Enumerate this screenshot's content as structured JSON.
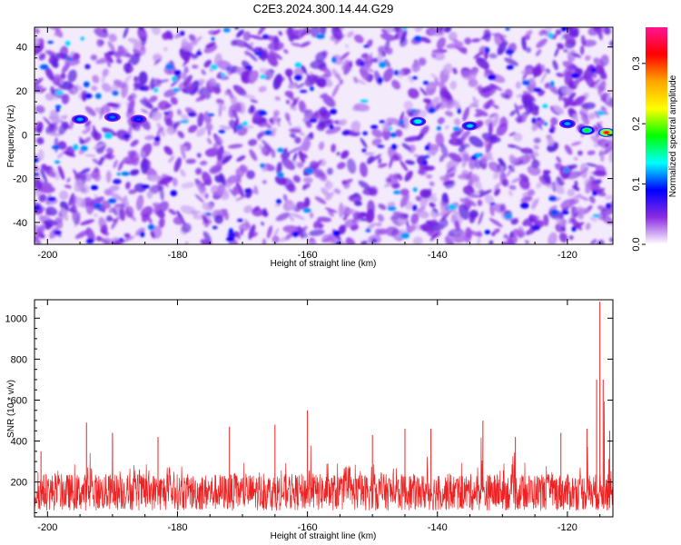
{
  "title": "C2E3.2024.300.14.44.G29",
  "chart_data": [
    {
      "type": "heatmap",
      "xlabel": "Height of straight line (km)",
      "ylabel": "Frequency (Hz)",
      "xlim": [
        -202,
        -113
      ],
      "ylim": [
        -50,
        49
      ],
      "x_ticks": [
        -200,
        -180,
        -160,
        -140,
        -120
      ],
      "y_ticks": [
        -40,
        -20,
        0,
        20,
        40
      ],
      "grid": false,
      "colorbar": {
        "label": "Normalized spectral amplitude",
        "range": [
          0,
          0.36
        ],
        "ticks": [
          0,
          0.1,
          0.2,
          0.3
        ],
        "tick_labels": [
          "0.0",
          "0.1",
          "0.2",
          "0.3"
        ],
        "colormap": [
          "#ffffff",
          "#8a2be2",
          "#0000ff",
          "#00ffff",
          "#00ff00",
          "#ffff00",
          "#ffa500",
          "#ff0000",
          "#ff1493"
        ]
      },
      "background_level": 0.04,
      "peak": {
        "x": -114,
        "y": 1,
        "value": 0.32
      },
      "hotspots": [
        {
          "x": -195,
          "y": 7,
          "value": 0.12
        },
        {
          "x": -190,
          "y": 8,
          "value": 0.11
        },
        {
          "x": -186,
          "y": 7,
          "value": 0.1
        },
        {
          "x": -143,
          "y": 6,
          "value": 0.15
        },
        {
          "x": -135,
          "y": 4,
          "value": 0.13
        },
        {
          "x": -120,
          "y": 5,
          "value": 0.12
        },
        {
          "x": -117,
          "y": 2,
          "value": 0.18
        },
        {
          "x": -114,
          "y": 1,
          "value": 0.32
        }
      ]
    },
    {
      "type": "line",
      "xlabel": "Height of straight line (km)",
      "ylabel": "SNR (10 * v/v)",
      "xlim": [
        -202,
        -113
      ],
      "ylim": [
        30,
        1090
      ],
      "x_ticks": [
        -200,
        -180,
        -160,
        -140,
        -120
      ],
      "y_ticks": [
        200,
        400,
        600,
        800,
        1000
      ],
      "grid": false,
      "series": [
        {
          "color": "#ee2222",
          "baseline": 150,
          "spread": 90,
          "points": [
            {
              "x": -201,
              "y": 350
            },
            {
              "x": -194,
              "y": 490
            },
            {
              "x": -190,
              "y": 440
            },
            {
              "x": -183,
              "y": 420
            },
            {
              "x": -172,
              "y": 470
            },
            {
              "x": -165,
              "y": 480
            },
            {
              "x": -160,
              "y": 550
            },
            {
              "x": -150,
              "y": 430
            },
            {
              "x": -145,
              "y": 460
            },
            {
              "x": -141,
              "y": 460
            },
            {
              "x": -133,
              "y": 500
            },
            {
              "x": -128,
              "y": 420
            },
            {
              "x": -121,
              "y": 440
            },
            {
              "x": -117,
              "y": 460
            },
            {
              "x": -115.5,
              "y": 700
            },
            {
              "x": -115,
              "y": 1080
            },
            {
              "x": -114.5,
              "y": 700
            },
            {
              "x": -113.5,
              "y": 450
            }
          ]
        }
      ]
    }
  ]
}
